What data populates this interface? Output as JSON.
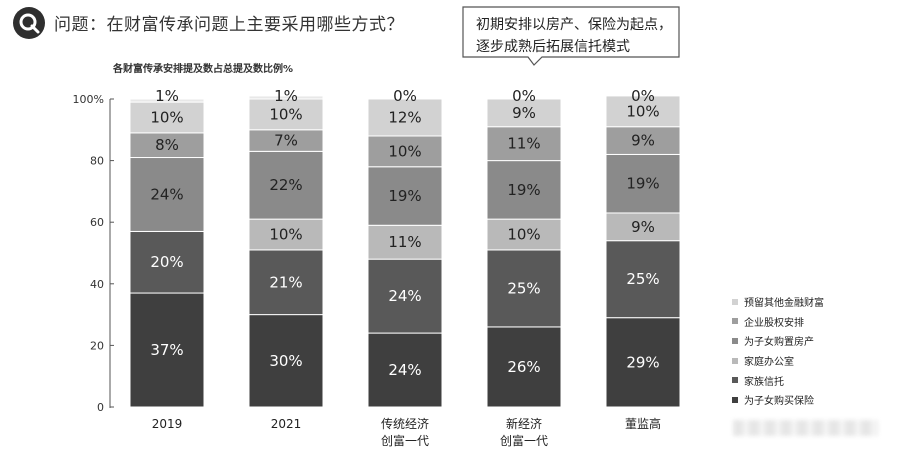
{
  "question": "问题：在财富传承问题上主要采用哪些方式？",
  "callout": [
    "初期安排以房产、保险为起点，",
    "逐步成熟后拓展信托模式"
  ],
  "chart_data": {
    "type": "bar",
    "stacked": true,
    "title": "各财富传承安排提及数占总提及数比例%",
    "categories": [
      [
        "2019"
      ],
      [
        "2021"
      ],
      [
        "传统经济",
        "创富一代"
      ],
      [
        "新经济",
        "创富一代"
      ],
      [
        "董监高"
      ]
    ],
    "series": [
      {
        "name": "为子女购买保险",
        "values": [
          37,
          30,
          24,
          26,
          29
        ],
        "color": "#3f3f3f",
        "label_color": "#ffffff"
      },
      {
        "name": "家族信托",
        "values": [
          20,
          21,
          24,
          25,
          25
        ],
        "color": "#595959",
        "label_color": "#ffffff"
      },
      {
        "name": "家庭办公室",
        "values": [
          0,
          10,
          11,
          10,
          9
        ],
        "color": "#b9b9b9",
        "label_color": "#222222"
      },
      {
        "name": "为子女购置房产",
        "values": [
          24,
          22,
          19,
          19,
          19
        ],
        "color": "#8a8a8a",
        "label_color": "#222222"
      },
      {
        "name": "企业股权安排",
        "values": [
          8,
          7,
          10,
          11,
          9
        ],
        "color": "#9e9e9e",
        "label_color": "#222222"
      },
      {
        "name": "预留其他金融财富",
        "values": [
          10,
          10,
          12,
          9,
          10
        ],
        "color": "#d2d2d2",
        "label_color": "#222222"
      },
      {
        "name": "",
        "values": [
          1,
          1,
          0,
          0,
          0
        ],
        "color": "#e8e8e8",
        "label_color": "#222222"
      }
    ],
    "yticks": [
      "0",
      "20",
      "40",
      "60",
      "80",
      "100%"
    ],
    "ylim": [
      0,
      100
    ],
    "legend_order": [
      "预留其他金融财富",
      "企业股权安排",
      "为子女购置房产",
      "家庭办公室",
      "家族信托",
      "为子女购买保险"
    ],
    "legend_colors": [
      "#d2d2d2",
      "#9e9e9e",
      "#8a8a8a",
      "#b9b9b9",
      "#595959",
      "#3f3f3f"
    ]
  }
}
